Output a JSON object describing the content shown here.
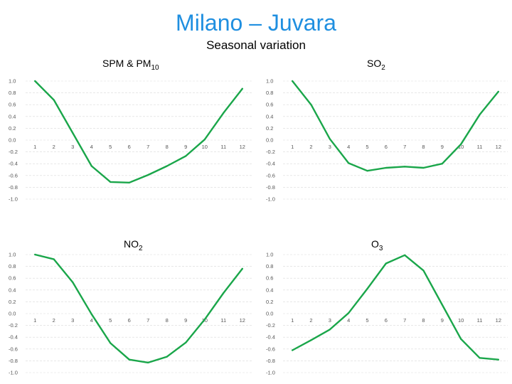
{
  "header": {
    "title": "Milano – Juvara",
    "subtitle": "Seasonal variation"
  },
  "colors": {
    "title": "#1f8fe0",
    "line": "#1aa64a",
    "grid": "#d9d9d9",
    "tick": "#555555"
  },
  "chart_data": [
    {
      "type": "line",
      "title_main": "SPM & PM",
      "title_sub": "10",
      "categories": [
        "1",
        "2",
        "3",
        "4",
        "5",
        "6",
        "7",
        "8",
        "9",
        "10",
        "11",
        "12"
      ],
      "yticks": [
        "1.0",
        "0.8",
        "0.6",
        "0.4",
        "0.2",
        "0.0",
        "-0.2",
        "-0.4",
        "-0.6",
        "-0.8",
        "-1.0"
      ],
      "ylim": [
        -1.0,
        1.0
      ],
      "grid": true,
      "values": [
        1.0,
        0.68,
        0.12,
        -0.44,
        -0.71,
        -0.72,
        -0.59,
        -0.44,
        -0.27,
        0.01,
        0.46,
        0.87
      ]
    },
    {
      "type": "line",
      "title_main": "SO",
      "title_sub": "2",
      "categories": [
        "1",
        "2",
        "3",
        "4",
        "5",
        "6",
        "7",
        "8",
        "9",
        "10",
        "11",
        "12"
      ],
      "yticks": [
        "1.0",
        "0.8",
        "0.6",
        "0.4",
        "0.2",
        "0.0",
        "-0.2",
        "-0.4",
        "-0.6",
        "-0.8",
        "-1.0"
      ],
      "ylim": [
        -1.0,
        1.0
      ],
      "grid": true,
      "values": [
        1.0,
        0.6,
        0.02,
        -0.39,
        -0.52,
        -0.47,
        -0.45,
        -0.47,
        -0.4,
        -0.07,
        0.43,
        0.82
      ]
    },
    {
      "type": "line",
      "title_main": "NO",
      "title_sub": "2",
      "categories": [
        "1",
        "2",
        "3",
        "4",
        "5",
        "6",
        "7",
        "8",
        "9",
        "10",
        "11",
        "12"
      ],
      "yticks": [
        "1.0",
        "0.8",
        "0.6",
        "0.4",
        "0.2",
        "0.0",
        "-0.2",
        "-0.4",
        "-0.6",
        "-0.8",
        "-1.0"
      ],
      "ylim": [
        -1.0,
        1.0
      ],
      "grid": true,
      "values": [
        1.0,
        0.92,
        0.53,
        -0.01,
        -0.5,
        -0.78,
        -0.83,
        -0.73,
        -0.49,
        -0.1,
        0.35,
        0.76
      ]
    },
    {
      "type": "line",
      "title_main": "O",
      "title_sub": "3",
      "categories": [
        "1",
        "2",
        "3",
        "4",
        "5",
        "6",
        "7",
        "8",
        "9",
        "10",
        "11",
        "12"
      ],
      "yticks": [
        "1.0",
        "0.8",
        "0.6",
        "0.4",
        "0.2",
        "0.0",
        "-0.2",
        "-0.4",
        "-0.6",
        "-0.8",
        "-1.0"
      ],
      "ylim": [
        -1.0,
        1.0
      ],
      "grid": true,
      "values": [
        -0.62,
        -0.45,
        -0.27,
        0.01,
        0.42,
        0.85,
        0.99,
        0.73,
        0.15,
        -0.43,
        -0.75,
        -0.78
      ]
    }
  ]
}
